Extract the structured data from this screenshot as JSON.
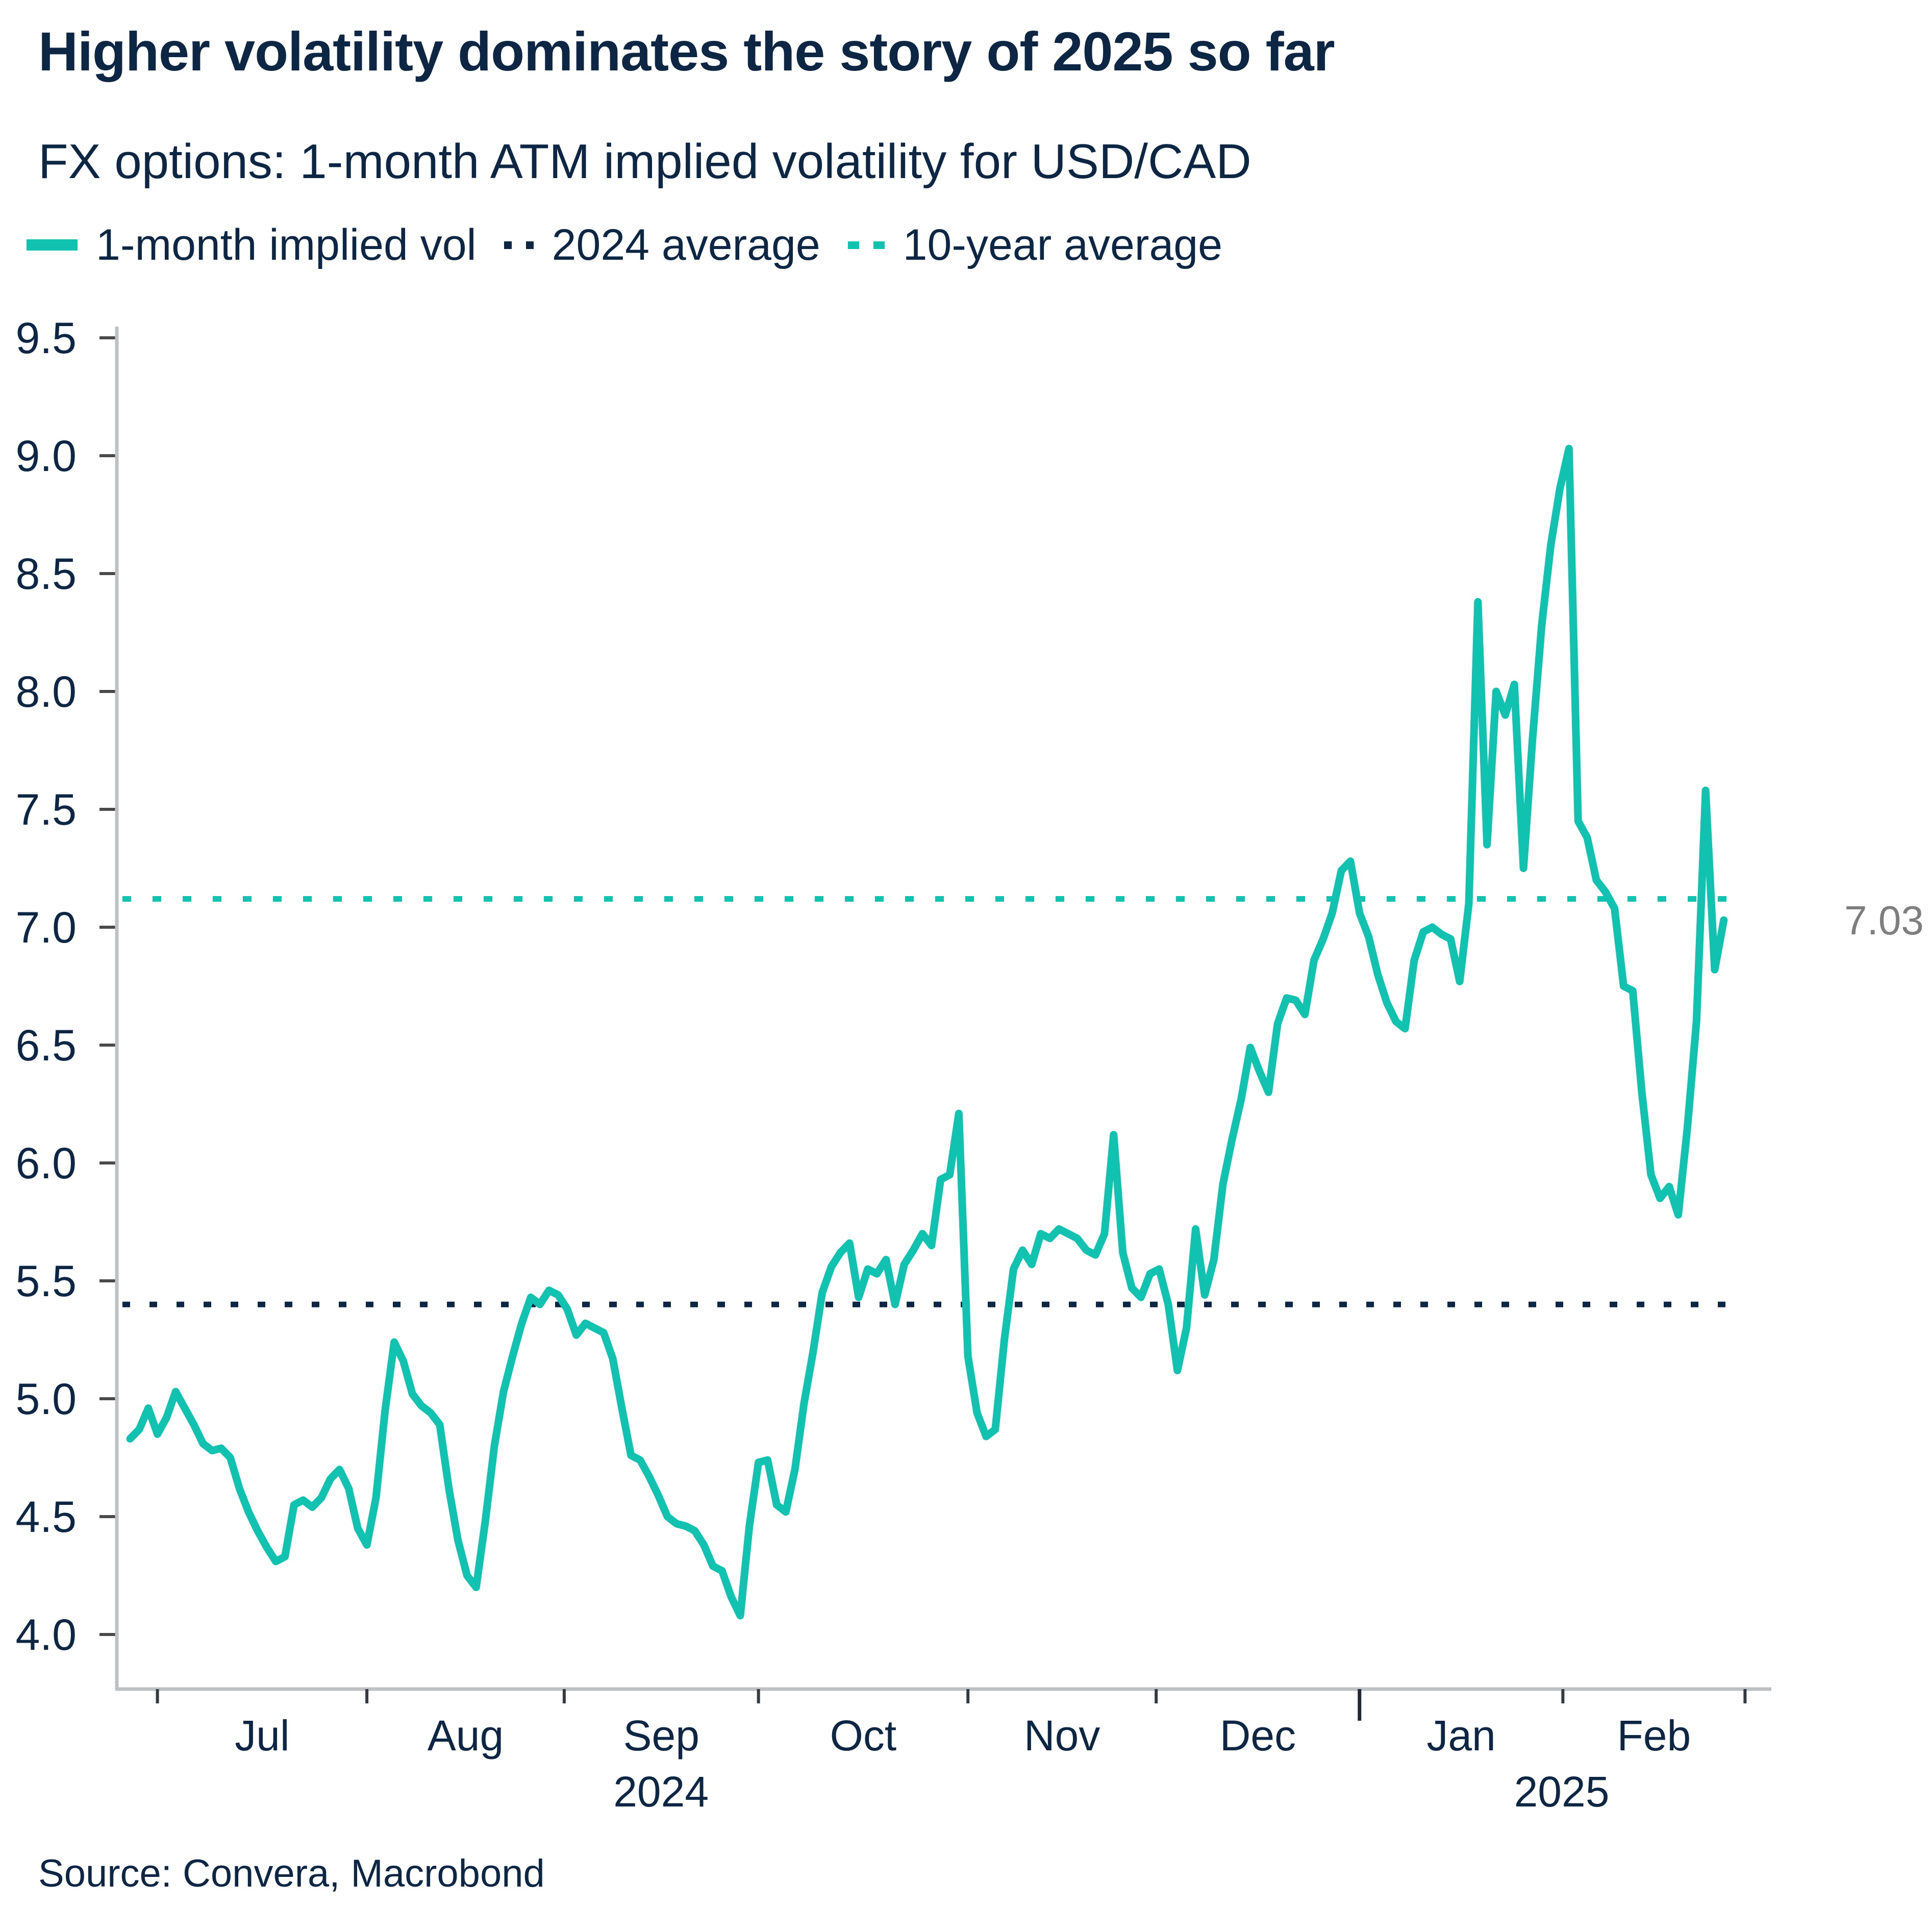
{
  "header": {
    "title": "Higher volatility dominates the story of 2025 so far",
    "subtitle": "FX options: 1-month ATM implied volatility for USD/CAD"
  },
  "legend": {
    "items": [
      {
        "label": "1-month implied vol",
        "style": "solid-teal"
      },
      {
        "label": "2024 average",
        "style": "dotted-dark"
      },
      {
        "label": "10-year average",
        "style": "dotted-teal"
      }
    ]
  },
  "source": "Source: Convera, Macrobond",
  "colors": {
    "navy": "#0d2643",
    "teal": "#12c2b0",
    "axis_gray": "#bdc1c4",
    "tick_gray": "#4a4a4a",
    "end_label_gray": "#7e7e7e"
  },
  "chart_data": {
    "type": "line",
    "title": "FX options: 1-month ATM implied volatility for USD/CAD",
    "xlabel": "",
    "ylabel": "",
    "ylim": [
      4.0,
      9.5
    ],
    "y_ticks": [
      4.0,
      4.5,
      5.0,
      5.5,
      6.0,
      6.5,
      7.0,
      7.5,
      8.0,
      8.5,
      9.0,
      9.5
    ],
    "grid": false,
    "legend_position": "top",
    "x_start": "2024-06-26",
    "x_end": "2025-02-26",
    "frequency": "weekdays",
    "month_ticks": [
      {
        "label": "Jul",
        "index": 3
      },
      {
        "label": "Aug",
        "index": 26
      },
      {
        "label": "Sep",
        "index": 47.67
      },
      {
        "label": "Oct",
        "index": 69
      },
      {
        "label": "Nov",
        "index": 92
      },
      {
        "label": "Dec",
        "index": 112.67
      },
      {
        "label": "Jan",
        "index": 135,
        "year_boundary": true
      },
      {
        "label": "Feb",
        "index": 157.33
      },
      {
        "label": null,
        "index": 177.33
      }
    ],
    "year_labels": [
      {
        "text": "2024",
        "index": 58.3
      },
      {
        "text": "2025",
        "index": 157.2
      }
    ],
    "series": [
      {
        "name": "1-month implied vol",
        "values": [
          4.83,
          4.87,
          4.96,
          4.85,
          4.92,
          5.03,
          4.96,
          4.89,
          4.81,
          4.78,
          4.79,
          4.75,
          4.62,
          4.52,
          4.44,
          4.37,
          4.31,
          4.33,
          4.55,
          4.57,
          4.54,
          4.58,
          4.66,
          4.7,
          4.62,
          4.45,
          4.38,
          4.58,
          4.95,
          5.24,
          5.16,
          5.02,
          4.97,
          4.94,
          4.89,
          4.62,
          4.4,
          4.25,
          4.2,
          4.48,
          4.8,
          5.03,
          5.18,
          5.32,
          5.43,
          5.4,
          5.46,
          5.44,
          5.38,
          5.27,
          5.32,
          5.3,
          5.28,
          5.17,
          4.96,
          4.76,
          4.74,
          4.67,
          4.59,
          4.5,
          4.47,
          4.46,
          4.44,
          4.38,
          4.29,
          4.27,
          4.16,
          4.08,
          4.46,
          4.73,
          4.74,
          4.55,
          4.52,
          4.7,
          4.98,
          5.2,
          5.45,
          5.56,
          5.62,
          5.66,
          5.43,
          5.55,
          5.53,
          5.59,
          5.4,
          5.57,
          5.63,
          5.7,
          5.65,
          5.93,
          5.95,
          6.21,
          5.18,
          4.94,
          4.84,
          4.87,
          5.25,
          5.55,
          5.63,
          5.57,
          5.7,
          5.68,
          5.72,
          5.7,
          5.68,
          5.63,
          5.61,
          5.7,
          6.12,
          5.62,
          5.47,
          5.43,
          5.53,
          5.55,
          5.4,
          5.12,
          5.3,
          5.72,
          5.44,
          5.59,
          5.91,
          6.1,
          6.27,
          6.49,
          6.39,
          6.3,
          6.59,
          6.7,
          6.69,
          6.63,
          6.86,
          6.95,
          7.06,
          7.24,
          7.28,
          7.06,
          6.96,
          6.8,
          6.68,
          6.6,
          6.57,
          6.86,
          6.98,
          7.0,
          6.97,
          6.95,
          6.77,
          7.1,
          8.38,
          7.35,
          8.0,
          7.9,
          8.03,
          7.25,
          7.8,
          8.28,
          8.62,
          8.86,
          9.03,
          7.45,
          7.38,
          7.2,
          7.15,
          7.08,
          6.75,
          6.73,
          6.3,
          5.95,
          5.85,
          5.9,
          5.78,
          6.15,
          6.6,
          7.58,
          6.82,
          7.03
        ]
      }
    ],
    "reference_lines": [
      {
        "name": "2024 average",
        "value": 5.4,
        "style": "dotted",
        "color": "#0d2643"
      },
      {
        "name": "10-year average",
        "value": 7.12,
        "style": "dotted",
        "color": "#12c2b0"
      }
    ],
    "end_label": "7.03"
  }
}
